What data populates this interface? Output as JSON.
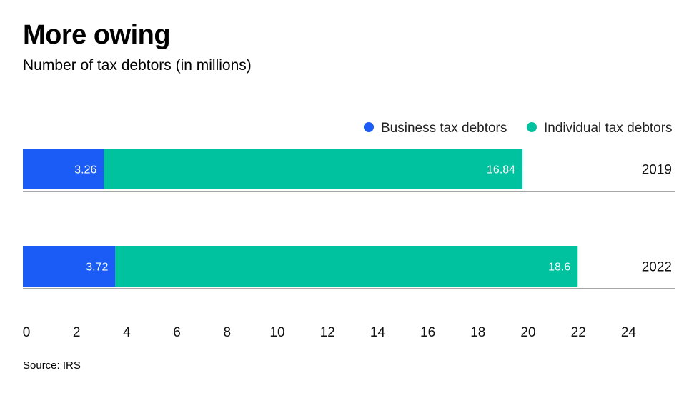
{
  "chart_data": {
    "type": "bar",
    "orientation": "horizontal",
    "stacked": true,
    "title": "More owing",
    "subtitle": "Number of tax debtors (in millions)",
    "source": "Source: IRS",
    "categories": [
      "2019",
      "2022"
    ],
    "series": [
      {
        "name": "Business tax debtors",
        "color": "#1a5cf5",
        "values": [
          3.26,
          3.72
        ],
        "labels": [
          "3.26",
          "3.72"
        ]
      },
      {
        "name": "Individual tax debtors",
        "color": "#00c29f",
        "values": [
          16.84,
          18.6
        ],
        "labels": [
          "16.84",
          "18.6"
        ]
      }
    ],
    "xlim": [
      0,
      24
    ],
    "xticks": [
      "0",
      "2",
      "4",
      "6",
      "8",
      "10",
      "12",
      "14",
      "16",
      "18",
      "20",
      "22",
      "24"
    ],
    "grid": false,
    "legend": "top-right"
  }
}
